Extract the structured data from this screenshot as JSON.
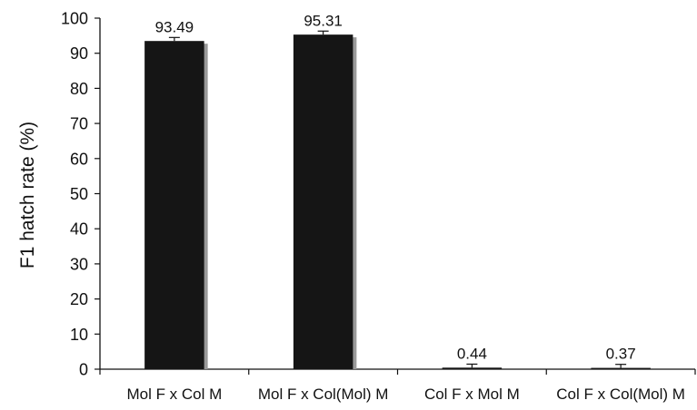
{
  "chart_data": {
    "type": "bar",
    "title": "",
    "xlabel": "",
    "ylabel": "F1 hatch rate (%)",
    "ylim": [
      0,
      100
    ],
    "yticks": [
      0,
      10,
      20,
      30,
      40,
      50,
      60,
      70,
      80,
      90,
      100
    ],
    "categories": [
      "Mol F x Col M",
      "Mol F x Col(Mol) M",
      "Col F x Mol M",
      "Col F x Col(Mol) M"
    ],
    "values": [
      93.49,
      95.31,
      0.44,
      0.37
    ],
    "value_labels": [
      "93.49",
      "95.31",
      "0.44",
      "0.37"
    ],
    "error": [
      1.0,
      1.0,
      1.0,
      1.0
    ],
    "grid": false,
    "legend": "none",
    "bar_color": "#151515",
    "shadow_color": "#999999"
  }
}
